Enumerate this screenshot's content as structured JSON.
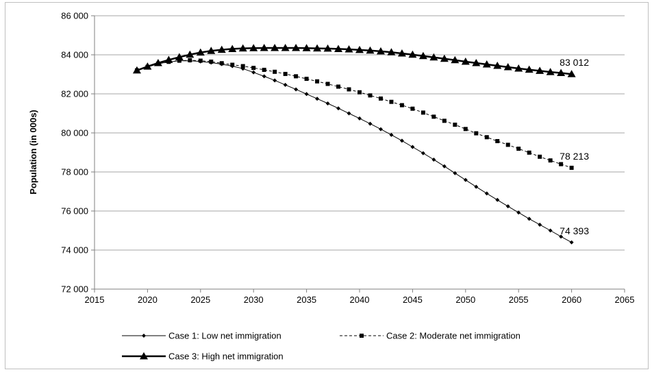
{
  "chart_data": {
    "type": "line",
    "title": "",
    "xlabel": "",
    "ylabel": "Population (in 000s)",
    "xlim": [
      2015,
      2065
    ],
    "ylim": [
      72000,
      86000
    ],
    "x_ticks": [
      2015,
      2020,
      2025,
      2030,
      2035,
      2040,
      2045,
      2050,
      2055,
      2060,
      2065
    ],
    "y_ticks": [
      72000,
      74000,
      76000,
      78000,
      80000,
      82000,
      84000,
      86000
    ],
    "x_tick_labels": [
      "2015",
      "2020",
      "2025",
      "2030",
      "2035",
      "2040",
      "2045",
      "2050",
      "2055",
      "2060",
      "2065"
    ],
    "y_tick_labels": [
      "72 000",
      "74 000",
      "76 000",
      "78 000",
      "80 000",
      "82 000",
      "84 000",
      "86 000"
    ],
    "grid": "horizontal",
    "legend_position": "bottom",
    "x": [
      2019,
      2020,
      2021,
      2022,
      2023,
      2024,
      2025,
      2026,
      2027,
      2028,
      2029,
      2030,
      2031,
      2032,
      2033,
      2034,
      2035,
      2036,
      2037,
      2038,
      2039,
      2040,
      2041,
      2042,
      2043,
      2044,
      2045,
      2046,
      2047,
      2048,
      2049,
      2050,
      2051,
      2052,
      2053,
      2054,
      2055,
      2056,
      2057,
      2058,
      2059,
      2060
    ],
    "series": [
      {
        "name": "Case 1: Low net immigration",
        "marker": "diamond",
        "line_style": "solid",
        "end_label": "74 393",
        "values": [
          83200,
          83380,
          83540,
          83640,
          83690,
          83700,
          83660,
          83600,
          83520,
          83420,
          83290,
          83100,
          82900,
          82690,
          82460,
          82230,
          81990,
          81750,
          81510,
          81260,
          81000,
          80740,
          80470,
          80190,
          79900,
          79600,
          79280,
          78960,
          78630,
          78290,
          77940,
          77590,
          77240,
          76900,
          76570,
          76240,
          75920,
          75600,
          75300,
          75000,
          74690,
          74393
        ]
      },
      {
        "name": "Case 2: Moderate net immigration",
        "marker": "square",
        "line_style": "dashed",
        "end_label": "78 213",
        "values": [
          83200,
          83380,
          83540,
          83640,
          83700,
          83720,
          83700,
          83650,
          83570,
          83490,
          83420,
          83330,
          83230,
          83130,
          83020,
          82900,
          82770,
          82640,
          82510,
          82370,
          82230,
          82080,
          81920,
          81760,
          81590,
          81420,
          81240,
          81040,
          80830,
          80620,
          80420,
          80200,
          79980,
          79780,
          79580,
          79390,
          79190,
          78990,
          78780,
          78590,
          78400,
          78213
        ]
      },
      {
        "name": "Case 3: High net immigration",
        "marker": "triangle",
        "line_style": "solid",
        "end_label": "83 012",
        "values": [
          83200,
          83400,
          83580,
          83740,
          83880,
          84010,
          84120,
          84200,
          84260,
          84300,
          84330,
          84340,
          84350,
          84350,
          84350,
          84350,
          84340,
          84330,
          84320,
          84300,
          84280,
          84250,
          84220,
          84180,
          84130,
          84070,
          84010,
          83940,
          83870,
          83800,
          83730,
          83650,
          83580,
          83510,
          83440,
          83370,
          83300,
          83240,
          83180,
          83120,
          83070,
          83012
        ]
      }
    ]
  }
}
